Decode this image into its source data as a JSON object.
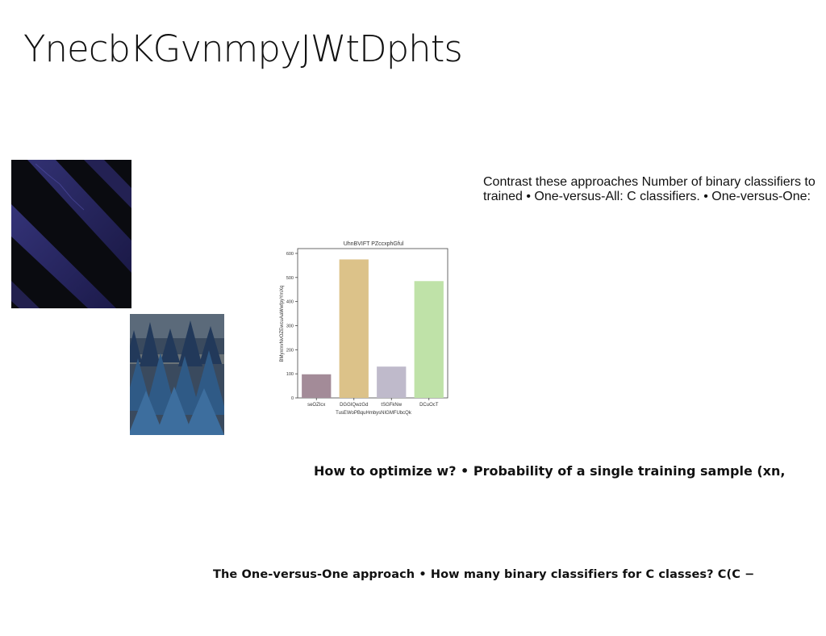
{
  "slide": {
    "title": "YnecbKGvnmpyJWtDphts",
    "text_block_1": "Contrast these approaches Number of binary classifiers to trained • One-versus-All: C classifiers. • One-versus-One:",
    "text_block_2": "How to optimize w? • Probability of a single training sample (xn,",
    "text_block_3": "The One-versus-One approach • How many binary classifiers for C classes? C(C −"
  },
  "images": {
    "photo_1": "dark-blue-diagonal-stripes-photo",
    "photo_2": "blue-forest-photo"
  },
  "chart_data": {
    "type": "bar",
    "title": "UhnBVIFT PZccxphGful",
    "xlabel": "TusEWoPBquHmbysNIGMFUbcQk",
    "ylabel": "BMyxrxvNvOZEwcuAaWwfpyYmXq",
    "categories": [
      "seOZIcx",
      "DGGIQwzGd",
      "tSGFkNw",
      "DCuOcT"
    ],
    "values": [
      98,
      575,
      130,
      485
    ],
    "colors": [
      "#a38b98",
      "#dcc289",
      "#bfbacb",
      "#bfe2a8"
    ],
    "ylim": [
      0,
      620
    ],
    "yticks": [
      0,
      100,
      200,
      300,
      400,
      500,
      600
    ],
    "grid": false
  }
}
